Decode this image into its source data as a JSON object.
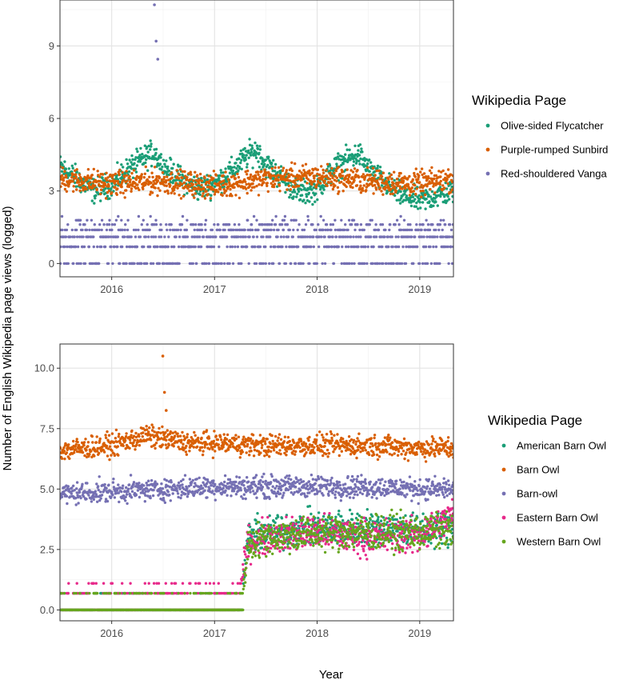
{
  "figure": {
    "ylabel": "Number of English Wikipedia page views (logged)",
    "xlabel": "Year"
  },
  "chart_data": [
    {
      "type": "scatter",
      "xlabel": "Year",
      "ylabel": "Number of English Wikipedia page views (logged)",
      "xlim": [
        "2015-07-01",
        "2019-05-01"
      ],
      "ylim": [
        -0.45,
        11.0
      ],
      "x_ticks": [
        {
          "value": "2016-01-01",
          "label": "2016"
        },
        {
          "value": "2017-01-01",
          "label": "2017"
        },
        {
          "value": "2018-01-01",
          "label": "2018"
        },
        {
          "value": "2019-01-01",
          "label": "2019"
        }
      ],
      "y_ticks": [
        {
          "value": 0,
          "label": "0"
        },
        {
          "value": 3,
          "label": "3"
        },
        {
          "value": 6,
          "label": "6"
        },
        {
          "value": 9,
          "label": "9"
        }
      ],
      "grid": true,
      "legend": {
        "title": "Wikipedia Page",
        "position": "right"
      },
      "series": [
        {
          "name": "Olive-sided Flycatcher",
          "color": "#1b9e77",
          "x": [
            "2015-07-01",
            "2015-09-01",
            "2015-11-01",
            "2016-01-01",
            "2016-03-01",
            "2016-05-01",
            "2016-06-01",
            "2016-07-01",
            "2016-09-01",
            "2016-11-01",
            "2017-01-01",
            "2017-03-01",
            "2017-05-01",
            "2017-06-01",
            "2017-07-01",
            "2017-09-01",
            "2017-11-01",
            "2018-01-01",
            "2018-03-01",
            "2018-05-01",
            "2018-06-01",
            "2018-07-01",
            "2018-09-01",
            "2018-11-01",
            "2019-01-01",
            "2019-03-01",
            "2019-05-01"
          ],
          "y": [
            4.0,
            3.5,
            3.0,
            3.3,
            3.9,
            4.4,
            4.6,
            4.0,
            3.5,
            3.1,
            3.3,
            3.8,
            4.5,
            4.7,
            4.1,
            3.5,
            2.9,
            3.1,
            3.9,
            4.4,
            4.5,
            3.9,
            3.3,
            2.8,
            2.6,
            2.8,
            3.0
          ]
        },
        {
          "name": "Purple-rumped Sunbird",
          "color": "#d95f02",
          "x": [
            "2015-07-01",
            "2016-01-01",
            "2016-07-01",
            "2017-01-01",
            "2017-07-01",
            "2018-01-01",
            "2018-07-01",
            "2019-01-01",
            "2019-05-01"
          ],
          "y": [
            3.5,
            3.3,
            3.4,
            3.2,
            3.5,
            3.6,
            3.4,
            3.3,
            3.5
          ]
        },
        {
          "name": "Red-shouldered Vanga",
          "color": "#7570b3",
          "x": [
            "2015-07-01",
            "2016-01-01",
            "2016-05-01",
            "2016-06-01",
            "2016-07-01",
            "2017-01-01",
            "2017-07-01",
            "2018-01-01",
            "2018-07-01",
            "2019-01-01",
            "2019-05-01"
          ],
          "y": [
            1.1,
            1.1,
            1.4,
            10.7,
            1.4,
            1.1,
            1.1,
            1.1,
            1.1,
            1.1,
            1.1
          ]
        }
      ]
    },
    {
      "type": "scatter",
      "xlabel": "Year",
      "ylabel": "Number of English Wikipedia page views (logged)",
      "xlim": [
        "2015-07-01",
        "2019-05-01"
      ],
      "ylim": [
        -0.45,
        11.0
      ],
      "x_ticks": [
        {
          "value": "2016-01-01",
          "label": "2016"
        },
        {
          "value": "2017-01-01",
          "label": "2017"
        },
        {
          "value": "2018-01-01",
          "label": "2018"
        },
        {
          "value": "2019-01-01",
          "label": "2019"
        }
      ],
      "y_ticks": [
        {
          "value": 0,
          "label": "0.0"
        },
        {
          "value": 2.5,
          "label": "2.5"
        },
        {
          "value": 5,
          "label": "5.0"
        },
        {
          "value": 7.5,
          "label": "7.5"
        },
        {
          "value": 10,
          "label": "10.0"
        }
      ],
      "grid": true,
      "legend": {
        "title": "Wikipedia Page",
        "position": "right"
      },
      "series": [
        {
          "name": "American Barn Owl",
          "color": "#1b9e77",
          "x": [
            "2015-07-01",
            "2016-07-01",
            "2017-04-01",
            "2017-05-01",
            "2017-07-01",
            "2018-01-01",
            "2018-07-01",
            "2019-01-01",
            "2019-05-01"
          ],
          "y": [
            0,
            0,
            0,
            3.0,
            3.2,
            3.4,
            3.4,
            3.3,
            3.4
          ]
        },
        {
          "name": "Barn Owl",
          "color": "#d95f02",
          "x": [
            "2015-07-01",
            "2016-01-01",
            "2016-05-01",
            "2016-07-01",
            "2016-10-01",
            "2017-01-01",
            "2017-07-01",
            "2018-01-01",
            "2018-07-01",
            "2019-01-01",
            "2019-05-01"
          ],
          "y": [
            6.6,
            6.8,
            7.2,
            10.5,
            6.9,
            6.9,
            6.8,
            6.8,
            6.8,
            6.7,
            6.7
          ]
        },
        {
          "name": "Barn-owl",
          "color": "#7570b3",
          "x": [
            "2015-07-01",
            "2016-01-01",
            "2016-07-01",
            "2017-01-01",
            "2017-07-01",
            "2018-01-01",
            "2018-07-01",
            "2019-01-01",
            "2019-05-01"
          ],
          "y": [
            4.8,
            4.9,
            5.0,
            5.1,
            5.1,
            5.1,
            5.1,
            5.0,
            5.0
          ]
        },
        {
          "name": "Eastern Barn Owl",
          "color": "#e7298a",
          "x": [
            "2015-07-01",
            "2016-07-01",
            "2017-04-01",
            "2017-05-01",
            "2017-07-01",
            "2018-01-01",
            "2018-07-01",
            "2019-01-01",
            "2019-05-01"
          ],
          "y": [
            0.7,
            0.7,
            0.7,
            2.8,
            3.0,
            3.2,
            3.0,
            3.1,
            3.9
          ]
        },
        {
          "name": "Western Barn Owl",
          "color": "#66a61e",
          "x": [
            "2015-07-01",
            "2016-07-01",
            "2017-04-01",
            "2017-05-01",
            "2017-07-01",
            "2018-01-01",
            "2018-07-01",
            "2019-01-01",
            "2019-05-01"
          ],
          "y": [
            0,
            0,
            0,
            2.7,
            3.0,
            3.2,
            3.2,
            3.2,
            3.3
          ]
        }
      ]
    }
  ]
}
